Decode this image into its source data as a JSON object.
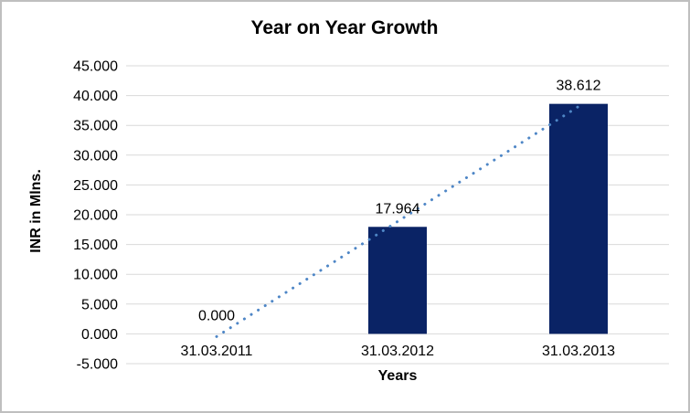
{
  "chart_data": {
    "type": "bar",
    "title": "Year on Year Growth",
    "xlabel": "Years",
    "ylabel": "INR in Mlns.",
    "categories": [
      "31.03.2011",
      "31.03.2012",
      "31.03.2013"
    ],
    "series": [
      {
        "name": "Year on Year Growth",
        "values": [
          0,
          17.964,
          38.612
        ],
        "data_labels": [
          "0.000",
          "17.964",
          "38.612"
        ],
        "color": "#0A2365"
      }
    ],
    "ylim": [
      -5,
      45
    ],
    "ytick_step": 5,
    "ytick_labels": [
      "45.000",
      "40.000",
      "35.000",
      "30.000",
      "25.000",
      "20.000",
      "15.000",
      "10.000",
      "5.000",
      "0.000",
      "-5.000"
    ],
    "grid": true,
    "gridline_color": "#D9D9D9",
    "legend": "none",
    "trendline": {
      "type": "linear",
      "style": "dotted",
      "color": "#4E86C6",
      "start_value": -0.45,
      "end_value": 38.17
    }
  },
  "frame": {
    "border_color": "#BFBFBF",
    "background": "#FFFFFF"
  }
}
